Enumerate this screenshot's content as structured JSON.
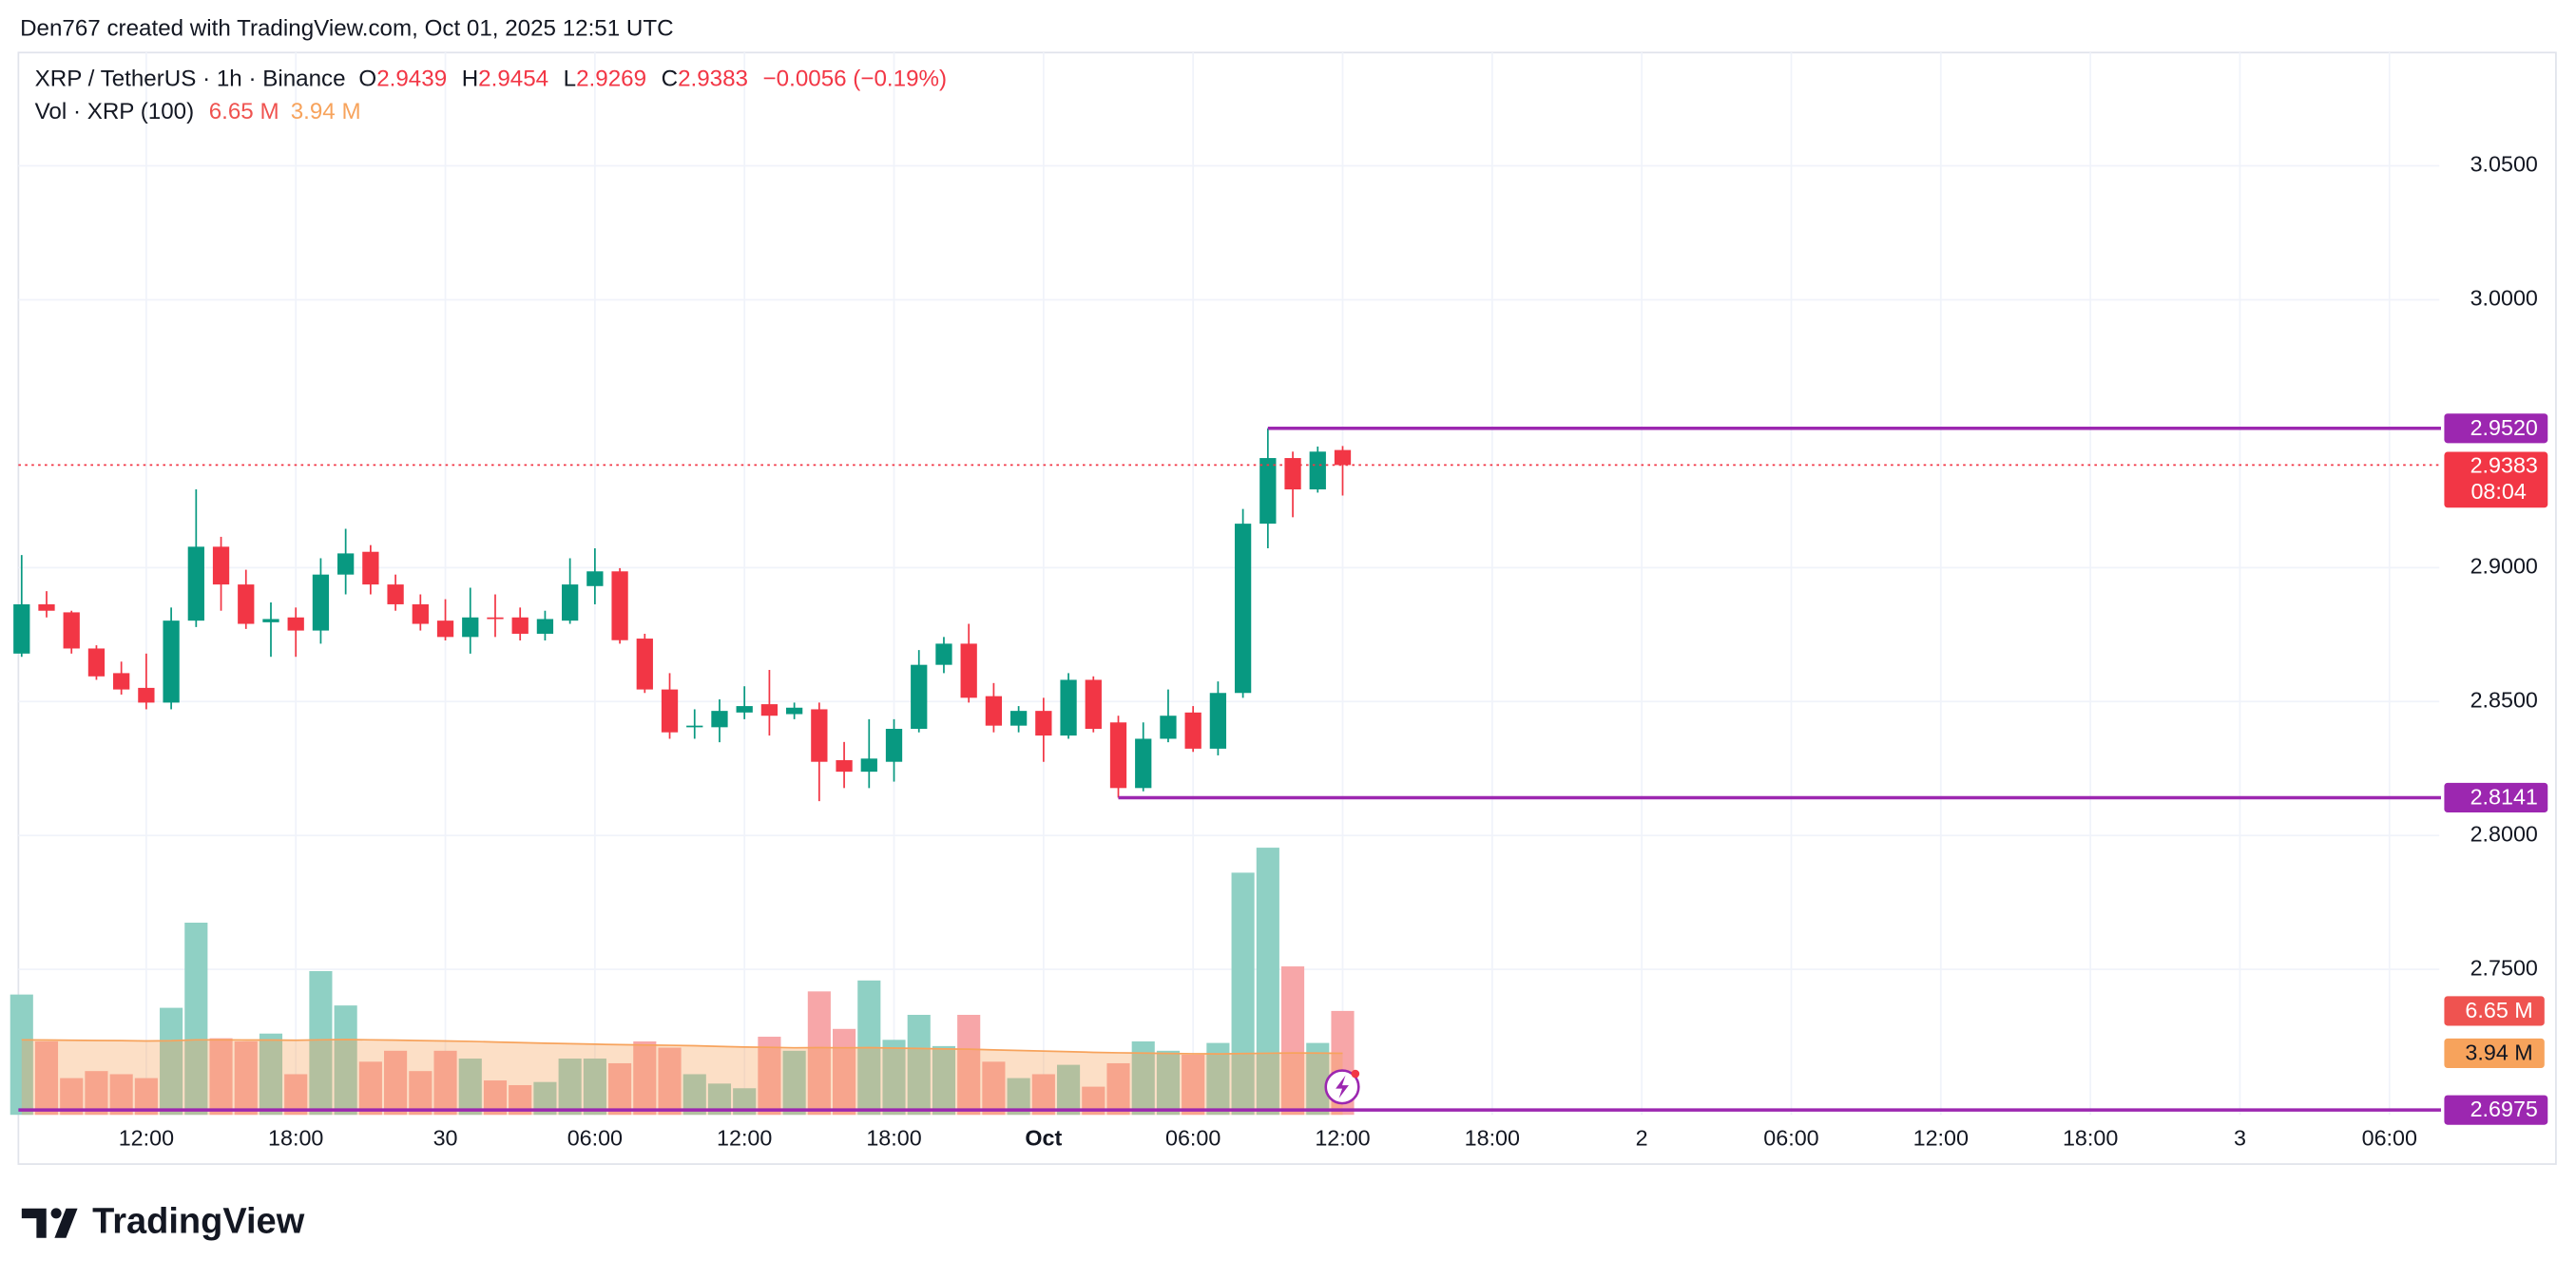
{
  "header": {
    "credit": "Den767 created with TradingView.com, Oct 01, 2025 12:51 UTC"
  },
  "footer": {
    "logo": "TradingView"
  },
  "chart_data": {
    "type": "candlestick",
    "title": "XRP / TetherUS · 1h · Binance",
    "ohlc_labels": [
      "O",
      "H",
      "L",
      "C"
    ],
    "change": "−0.0056 (−0.19%)",
    "up_color": "#089981",
    "down_color": "#f23645",
    "open": [
      2.8679,
      2.8863,
      2.8833,
      2.8698,
      2.8606,
      2.8551,
      2.8496,
      2.8802,
      2.9078,
      2.8937,
      2.8796,
      2.8814,
      2.8765,
      2.8974,
      2.9059,
      2.8937,
      2.8863,
      2.8802,
      2.8741,
      2.8814,
      2.8814,
      2.8753,
      2.8802,
      2.8931,
      2.8986,
      2.8735,
      2.8545,
      2.8404,
      2.8404,
      2.8459,
      2.849,
      2.8453,
      2.8471,
      2.8281,
      2.8238,
      2.8275,
      2.8398,
      2.8637,
      2.8716,
      2.852,
      2.841,
      2.8465,
      2.8373,
      2.8581,
      2.8422,
      2.8177,
      2.8361,
      2.8459,
      2.8324,
      2.8532,
      2.9164,
      2.9409,
      2.9292,
      2.9439
    ],
    "high": [
      2.9047,
      2.8912,
      2.8839,
      2.871,
      2.8649,
      2.8679,
      2.8851,
      2.9292,
      2.9115,
      2.8992,
      2.887,
      2.8851,
      2.9035,
      2.9145,
      2.9084,
      2.8974,
      2.89,
      2.8882,
      2.8925,
      2.89,
      2.8851,
      2.8839,
      2.9035,
      2.9072,
      2.8998,
      2.8753,
      2.8606,
      2.8471,
      2.8508,
      2.8557,
      2.8618,
      2.8496,
      2.8496,
      2.8349,
      2.8434,
      2.8434,
      2.8692,
      2.8741,
      2.879,
      2.8569,
      2.8483,
      2.8514,
      2.8606,
      2.8594,
      2.8447,
      2.8422,
      2.8545,
      2.8483,
      2.8575,
      2.9219,
      2.952,
      2.9433,
      2.9452,
      2.9454
    ],
    "low": [
      2.8667,
      2.8814,
      2.8679,
      2.8581,
      2.8526,
      2.8471,
      2.8471,
      2.8778,
      2.8839,
      2.8771,
      2.8667,
      2.8667,
      2.8716,
      2.89,
      2.89,
      2.8839,
      2.8765,
      2.8728,
      2.8679,
      2.8741,
      2.8728,
      2.8728,
      2.879,
      2.8863,
      2.8716,
      2.8532,
      2.8361,
      2.8361,
      2.8348,
      2.8434,
      2.8373,
      2.8434,
      2.8128,
      2.8177,
      2.8177,
      2.8201,
      2.8385,
      2.8606,
      2.8496,
      2.8385,
      2.8385,
      2.8275,
      2.8361,
      2.8385,
      2.8141,
      2.8165,
      2.8348,
      2.8312,
      2.8299,
      2.8514,
      2.9072,
      2.9188,
      2.928,
      2.9269
    ],
    "close": [
      2.8863,
      2.8839,
      2.8698,
      2.8594,
      2.8545,
      2.8496,
      2.8802,
      2.9078,
      2.8937,
      2.879,
      2.8808,
      2.8765,
      2.8974,
      2.9053,
      2.8937,
      2.8863,
      2.879,
      2.8741,
      2.8814,
      2.8808,
      2.8753,
      2.8808,
      2.8937,
      2.8986,
      2.8729,
      2.8545,
      2.8385,
      2.841,
      2.8465,
      2.8483,
      2.8447,
      2.8477,
      2.8275,
      2.8238,
      2.8287,
      2.8398,
      2.8637,
      2.8716,
      2.8514,
      2.841,
      2.8465,
      2.8373,
      2.8581,
      2.8398,
      2.8177,
      2.8361,
      2.8447,
      2.8324,
      2.8532,
      2.9164,
      2.9409,
      2.9292,
      2.9433,
      2.9383
    ],
    "countdown": "08:04",
    "volume": {
      "name": "Vol · XRP (100)",
      "up_color": "#8fd0c4",
      "down_color": "#f7a6a8",
      "ma_color": "#f7a35c",
      "ylim": [
        0,
        68
      ],
      "values": [
        7.7,
        4.7,
        2.35,
        2.8,
        2.6,
        2.35,
        6.85,
        12.3,
        4.9,
        4.7,
        5.2,
        2.6,
        9.2,
        7.0,
        3.4,
        4.1,
        2.8,
        4.1,
        3.6,
        2.2,
        1.9,
        2.1,
        3.6,
        3.6,
        3.3,
        4.7,
        4.3,
        2.6,
        2.0,
        1.7,
        5.0,
        4.1,
        7.9,
        5.5,
        8.6,
        4.8,
        6.4,
        4.4,
        6.4,
        3.4,
        2.35,
        2.6,
        3.2,
        1.8,
        3.3,
        4.7,
        4.1,
        3.85,
        4.6,
        15.5,
        17.1,
        9.5,
        4.6,
        6.65
      ],
      "last_label": "6.65 M",
      "ma": [
        4.8,
        4.79,
        4.77,
        4.76,
        4.75,
        4.73,
        4.74,
        4.8,
        4.8,
        4.79,
        4.79,
        4.77,
        4.8,
        4.82,
        4.8,
        4.78,
        4.75,
        4.73,
        4.7,
        4.66,
        4.62,
        4.58,
        4.55,
        4.52,
        4.49,
        4.47,
        4.45,
        4.42,
        4.38,
        4.34,
        4.32,
        4.29,
        4.3,
        4.29,
        4.3,
        4.27,
        4.25,
        4.22,
        4.2,
        4.16,
        4.12,
        4.08,
        4.04,
        4.0,
        3.97,
        3.95,
        3.93,
        3.91,
        3.9,
        3.92,
        3.94,
        3.96,
        3.95,
        3.94
      ],
      "ma_last_label": "3.94 M"
    },
    "hlines_color": "#9c27b0",
    "hlines": [
      {
        "value": 2.952,
        "label": "2.9520"
      },
      2.8141,
      2.6975
    ],
    "ylim": [
      2.6957,
      3.0923
    ],
    "yticks": [
      {
        "value": 2.75,
        "label": "2.7500"
      },
      {
        "value": 2.8,
        "label": "2.8000"
      },
      {
        "value": 2.85,
        "label": "2.8500"
      },
      {
        "value": 2.9,
        "label": "2.9000"
      },
      {
        "value": 3.0,
        "label": "3.0000"
      },
      {
        "value": 3.05,
        "label": "3.0500"
      }
    ],
    "xlim": [
      -0.13,
      97.0
    ],
    "xticks": [
      {
        "value": 5,
        "label": "12:00"
      },
      {
        "value": 11,
        "label": "18:00"
      },
      {
        "value": 17,
        "label": "30"
      },
      {
        "value": 23,
        "label": "06:00"
      },
      {
        "value": 29,
        "label": "12:00"
      },
      {
        "value": 35,
        "label": "18:00"
      },
      {
        "value": 41,
        "label": "Oct",
        "bold": true
      },
      {
        "value": 47,
        "label": "06:00"
      },
      {
        "value": 53,
        "label": "12:00"
      },
      {
        "value": 59,
        "label": "18:00"
      },
      {
        "value": 65,
        "label": "2"
      },
      {
        "value": 71,
        "label": "06:00"
      },
      {
        "value": 77,
        "label": "12:00"
      },
      {
        "value": 83,
        "label": "18:00"
      },
      {
        "value": 89,
        "label": "3"
      },
      {
        "value": 95,
        "label": "06:00"
      }
    ],
    "grid": true
  }
}
